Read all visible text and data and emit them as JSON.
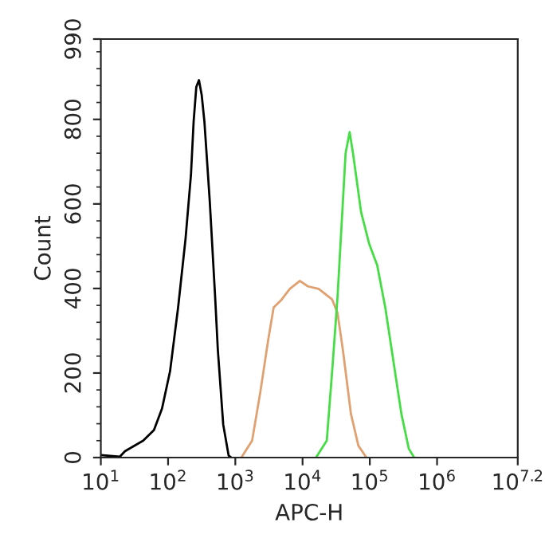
{
  "chart_data": {
    "type": "line",
    "xlabel": "APC-H",
    "ylabel": "Count",
    "log": "x",
    "grid": false,
    "legend": false,
    "marker": "none",
    "line_style": "solid",
    "xlim": [
      10,
      15848932
    ],
    "xticks": [
      {
        "value": 10,
        "label": "10$^{1}$"
      },
      {
        "value": 100,
        "label": "10$^{2}$"
      },
      {
        "value": 1000,
        "label": "10$^{3}$"
      },
      {
        "value": 10000,
        "label": "10$^{4}$"
      },
      {
        "value": 100000,
        "label": "10$^{5}$"
      },
      {
        "value": 1000000,
        "label": "10$^{6}$"
      },
      {
        "value": 15848932,
        "label": "10$^{7.2}$"
      }
    ],
    "ylim": [
      0,
      990
    ],
    "yticks": [
      0,
      200,
      400,
      600,
      800,
      990
    ],
    "series": [
      {
        "color": "#000000",
        "x": [
          10,
          19.1,
          22.9,
          42.7,
          61.7,
          81.3,
          107,
          141,
          182,
          219,
          240,
          263,
          288,
          316,
          347,
          417,
          501,
          550,
          661,
          794,
          871
        ],
        "values": [
          6,
          2,
          15,
          40,
          65,
          116,
          204,
          355,
          518,
          669,
          795,
          877,
          893,
          858,
          795,
          606,
          380,
          254,
          78,
          5,
          0
        ]
      },
      {
        "color": "#e0a070",
        "x": [
          1230,
          1778,
          2344,
          3090,
          3715,
          4898,
          6457,
          9120,
          12023,
          17378,
          27542,
          33113,
          39811,
          52481,
          67608,
          89125
        ],
        "values": [
          0,
          40,
          153,
          279,
          355,
          374,
          399,
          418,
          405,
          399,
          374,
          342,
          254,
          103,
          28,
          0
        ]
      },
      {
        "color": "#44dd44",
        "x": [
          15849,
          22909,
          27542,
          33113,
          39811,
          43652,
          50119,
          56234,
          74131,
          97724,
          128825,
          169824,
          223872,
          295121,
          380189,
          457088
        ],
        "values": [
          0,
          40,
          204,
          380,
          606,
          720,
          770,
          720,
          581,
          506,
          455,
          355,
          229,
          103,
          21,
          0
        ]
      }
    ]
  }
}
